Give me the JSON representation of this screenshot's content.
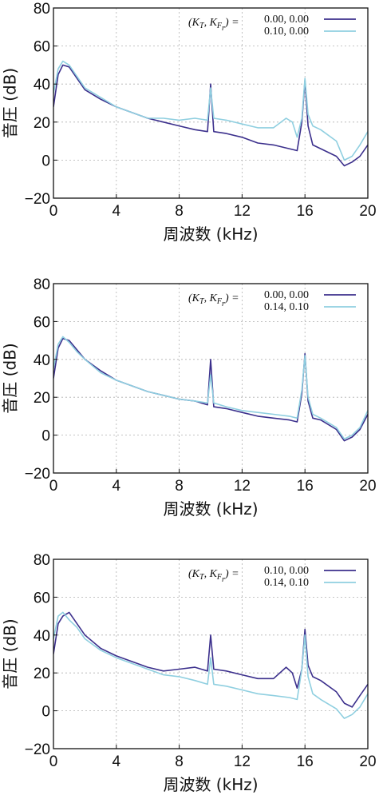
{
  "colors": {
    "dark": "#3b2f8c",
    "light": "#8fcfe0",
    "grid": "#b0b0b0",
    "frame": "#111111"
  },
  "chart_data": [
    {
      "type": "line",
      "xlabel": "周波数 (kHz)",
      "ylabel": "音圧 (dB)",
      "xlim": [
        0,
        20
      ],
      "ylim": [
        -20,
        80
      ],
      "xticks": [
        0,
        4,
        8,
        12,
        16,
        20
      ],
      "yticks": [
        -20,
        0,
        20,
        40,
        60,
        80
      ],
      "x_tick_labels": [
        "0",
        "4",
        "8",
        "12",
        "16",
        "20"
      ],
      "y_tick_labels": [
        "−20",
        "0",
        "20",
        "40",
        "60",
        "80"
      ],
      "grid": true,
      "legend_position": "top-right",
      "legend_key": {
        "k1": "K",
        "s1": "T",
        "k2": "K",
        "s2": "F",
        "s3": "r"
      },
      "series": [
        {
          "name": "0.00, 0.00",
          "color": "dark",
          "x": [
            0,
            0.3,
            0.6,
            1,
            1.5,
            2,
            3,
            4,
            5,
            6,
            7,
            8,
            9,
            9.8,
            10,
            10.2,
            11,
            12,
            13,
            14,
            15,
            15.5,
            15.8,
            16,
            16.2,
            16.5,
            17,
            18,
            18.5,
            19,
            19.5,
            20
          ],
          "values": [
            28,
            45,
            50,
            49,
            43,
            37,
            32,
            28,
            25,
            22,
            20,
            18,
            16,
            15,
            40,
            15,
            14,
            12,
            9,
            8,
            6,
            5,
            20,
            42,
            18,
            8,
            6,
            2,
            -3,
            -1,
            2,
            8
          ]
        },
        {
          "name": "0.10, 0.00",
          "color": "light",
          "x": [
            0,
            0.3,
            0.6,
            1,
            1.5,
            2,
            3,
            4,
            5,
            6,
            7,
            8,
            9,
            9.8,
            10,
            10.2,
            11,
            12,
            13,
            14,
            14.8,
            15.2,
            15.5,
            15.8,
            16,
            16.2,
            16.5,
            17,
            18,
            18.5,
            19,
            19.5,
            20
          ],
          "values": [
            35,
            48,
            52,
            50,
            44,
            38,
            33,
            28,
            25,
            22,
            22,
            21,
            22,
            21,
            38,
            22,
            21,
            19,
            17,
            17,
            22,
            20,
            12,
            22,
            43,
            24,
            18,
            16,
            10,
            0,
            2,
            8,
            15
          ]
        }
      ]
    },
    {
      "type": "line",
      "xlabel": "周波数 (kHz)",
      "ylabel": "音圧 (dB)",
      "xlim": [
        0,
        20
      ],
      "ylim": [
        -20,
        80
      ],
      "xticks": [
        0,
        4,
        8,
        12,
        16,
        20
      ],
      "yticks": [
        -20,
        0,
        20,
        40,
        60,
        80
      ],
      "x_tick_labels": [
        "0",
        "4",
        "8",
        "12",
        "16",
        "20"
      ],
      "y_tick_labels": [
        "−20",
        "0",
        "20",
        "40",
        "60",
        "80"
      ],
      "grid": true,
      "legend_position": "top-right",
      "legend_key": {
        "k1": "K",
        "s1": "T",
        "k2": "K",
        "s2": "F",
        "s3": "r"
      },
      "series": [
        {
          "name": "0.00, 0.00",
          "color": "dark",
          "x": [
            0,
            0.3,
            0.6,
            1,
            1.5,
            2,
            3,
            4,
            5,
            6,
            7,
            8,
            9,
            9.8,
            10,
            10.2,
            11,
            12,
            13,
            14,
            15,
            15.5,
            15.8,
            16,
            16.2,
            16.5,
            17,
            18,
            18.5,
            19,
            19.5,
            20
          ],
          "values": [
            30,
            46,
            51,
            50,
            45,
            40,
            34,
            29,
            26,
            23,
            21,
            19,
            18,
            16,
            40,
            15,
            14,
            12,
            10,
            9,
            8,
            7,
            22,
            43,
            18,
            9,
            8,
            3,
            -3,
            -1,
            3,
            11
          ]
        },
        {
          "name": "0.14, 0.10",
          "color": "light",
          "x": [
            0,
            0.3,
            0.6,
            1,
            1.5,
            2,
            3,
            4,
            5,
            6,
            7,
            8,
            9,
            9.8,
            10,
            10.2,
            11,
            12,
            13,
            14,
            15,
            15.5,
            15.8,
            16,
            16.2,
            16.5,
            17,
            18,
            18.5,
            19,
            19.5,
            20
          ],
          "values": [
            35,
            48,
            52,
            49,
            44,
            40,
            33,
            29,
            26,
            23,
            21,
            19,
            18,
            17,
            32,
            17,
            15,
            13,
            12,
            11,
            10,
            9,
            24,
            42,
            20,
            11,
            9,
            4,
            -2,
            0,
            4,
            13
          ]
        }
      ]
    },
    {
      "type": "line",
      "xlabel": "周波数 (kHz)",
      "ylabel": "音圧 (dB)",
      "xlim": [
        0,
        20
      ],
      "ylim": [
        -20,
        80
      ],
      "xticks": [
        0,
        4,
        8,
        12,
        16,
        20
      ],
      "yticks": [
        -20,
        0,
        20,
        40,
        60,
        80
      ],
      "x_tick_labels": [
        "0",
        "4",
        "8",
        "12",
        "16",
        "20"
      ],
      "y_tick_labels": [
        "−20",
        "0",
        "20",
        "40",
        "60",
        "80"
      ],
      "grid": true,
      "legend_position": "top-right",
      "legend_key": {
        "k1": "K",
        "s1": "T",
        "k2": "K",
        "s2": "F",
        "s3": "r"
      },
      "series": [
        {
          "name": "0.10, 0.00",
          "color": "dark",
          "x": [
            0,
            0.3,
            0.6,
            1,
            1.5,
            2,
            3,
            4,
            5,
            6,
            7,
            8,
            9,
            9.8,
            10,
            10.2,
            11,
            12,
            13,
            14,
            14.8,
            15.2,
            15.5,
            15.8,
            16,
            16.2,
            16.5,
            17,
            18,
            18.5,
            19,
            19.5,
            20
          ],
          "values": [
            30,
            46,
            50,
            52,
            46,
            40,
            33,
            29,
            26,
            23,
            21,
            22,
            23,
            21,
            40,
            22,
            21,
            19,
            17,
            17,
            23,
            20,
            12,
            22,
            43,
            24,
            18,
            16,
            10,
            4,
            2,
            8,
            14
          ]
        },
        {
          "name": "0.14, 0.10",
          "color": "light",
          "x": [
            0,
            0.3,
            0.6,
            1,
            1.5,
            2,
            3,
            4,
            5,
            6,
            7,
            8,
            9,
            9.8,
            10,
            10.2,
            11,
            12,
            13,
            14,
            15,
            15.5,
            15.8,
            16,
            16.2,
            16.5,
            17,
            18,
            18.5,
            19,
            19.5,
            20
          ],
          "values": [
            38,
            50,
            52,
            48,
            44,
            38,
            32,
            28,
            25,
            22,
            19,
            18,
            16,
            14,
            28,
            14,
            13,
            11,
            9,
            8,
            7,
            6,
            22,
            40,
            18,
            9,
            6,
            1,
            -4,
            -2,
            2,
            9
          ]
        }
      ]
    }
  ]
}
